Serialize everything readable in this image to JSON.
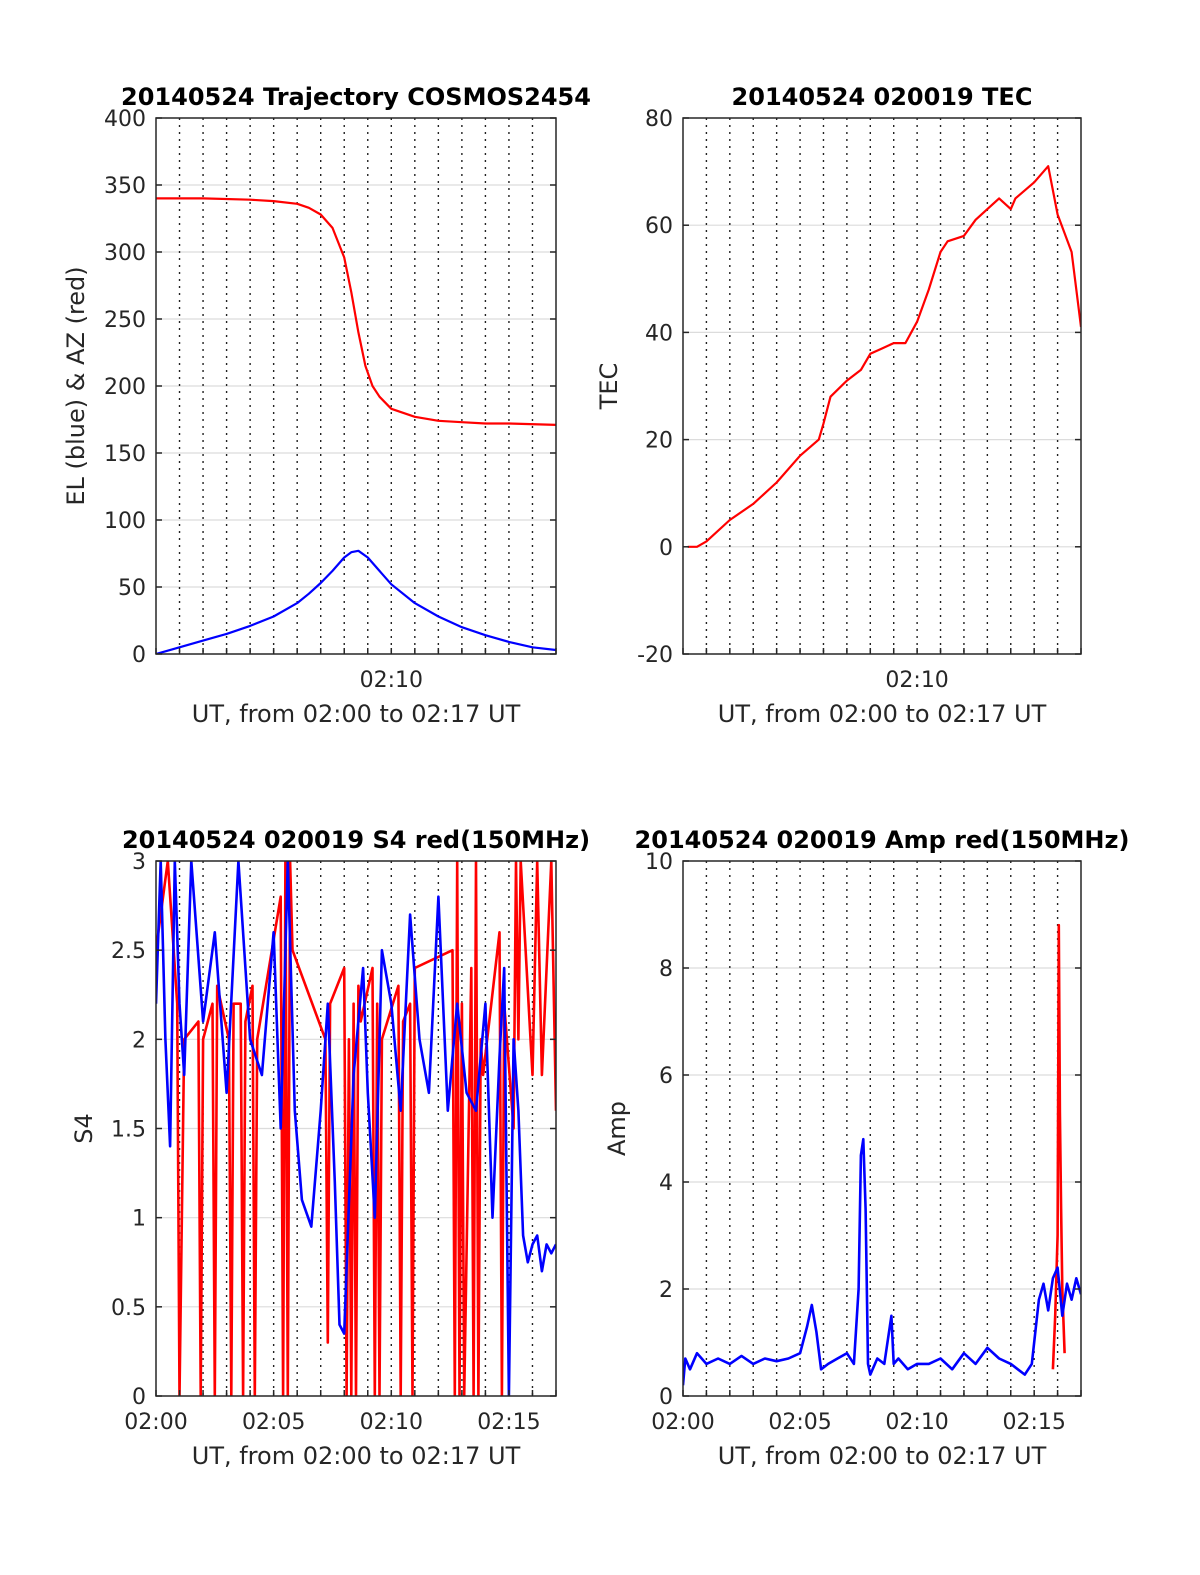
{
  "chart_data": [
    {
      "type": "line",
      "title": "20140524 Trajectory COSMOS2454",
      "xlabel": "UT, from 02:00 to 02:17 UT",
      "ylabel": "EL (blue) & AZ (red)",
      "xlim_minutes": [
        0,
        17
      ],
      "ylim": [
        0,
        400
      ],
      "yticks": [
        0,
        50,
        100,
        150,
        200,
        250,
        300,
        350,
        400
      ],
      "xticks": [
        {
          "minute": 10,
          "label": "02:10"
        }
      ],
      "grid": "y solid, x dotted every minute",
      "series": [
        {
          "color": "#ff0000",
          "x": [
            0,
            2,
            4,
            5,
            6,
            6.5,
            7,
            7.5,
            8,
            8.3,
            8.6,
            8.9,
            9.2,
            9.5,
            10,
            11,
            12,
            13,
            14,
            15,
            17
          ],
          "y": [
            340,
            340,
            339,
            338,
            336,
            333,
            328,
            318,
            296,
            270,
            240,
            215,
            200,
            192,
            183,
            177,
            174,
            173,
            172,
            172,
            171
          ]
        },
        {
          "color": "#0000ff",
          "x": [
            0,
            1,
            2,
            3,
            4,
            5,
            6,
            6.5,
            7,
            7.5,
            8,
            8.3,
            8.6,
            9,
            9.5,
            10,
            11,
            12,
            13,
            14,
            15,
            16,
            17
          ],
          "y": [
            0,
            5,
            10,
            15,
            21,
            28,
            38,
            45,
            53,
            62,
            72,
            76,
            77,
            72,
            62,
            52,
            38,
            28,
            20,
            14,
            9,
            5,
            3
          ]
        }
      ]
    },
    {
      "type": "line",
      "title": "20140524 020019 TEC",
      "xlabel": "UT, from 02:00 to 02:17 UT",
      "ylabel": "TEC",
      "xlim_minutes": [
        0,
        17
      ],
      "ylim": [
        -20,
        80
      ],
      "yticks": [
        -20,
        0,
        20,
        40,
        60,
        80
      ],
      "xticks": [
        {
          "minute": 10,
          "label": "02:10"
        }
      ],
      "grid": "y solid, x dotted every minute",
      "series": [
        {
          "color": "#ff0000",
          "x": [
            0.2,
            0.6,
            1,
            2,
            3,
            4,
            5,
            5.8,
            6,
            6.3,
            7,
            7.6,
            8,
            8.5,
            9,
            9.5,
            10,
            10.5,
            11,
            11.3,
            12,
            12.5,
            13,
            13.5,
            14,
            14.2,
            15,
            15.6,
            16,
            16.6,
            17
          ],
          "y": [
            0,
            0,
            1,
            5,
            8,
            12,
            17,
            20,
            23,
            28,
            31,
            33,
            36,
            37,
            38,
            38,
            42,
            48,
            55,
            57,
            58,
            61,
            63,
            65,
            63,
            65,
            68,
            71,
            62,
            55,
            41
          ]
        }
      ]
    },
    {
      "type": "line",
      "title": "20140524 020019 S4 red(150MHz)",
      "xlabel": "UT, from 02:00 to 02:17 UT",
      "ylabel": "S4",
      "xlim_minutes": [
        0,
        17
      ],
      "ylim": [
        0,
        3
      ],
      "yticks": [
        0,
        0.5,
        1,
        1.5,
        2,
        2.5,
        3
      ],
      "xticks": [
        {
          "minute": 0,
          "label": "02:00"
        },
        {
          "minute": 5,
          "label": "02:05"
        },
        {
          "minute": 10,
          "label": "02:10"
        },
        {
          "minute": 15,
          "label": "02:15"
        }
      ],
      "grid": "y solid, x dotted every minute",
      "series": [
        {
          "color": "#ff0000",
          "x": [
            0,
            0.5,
            0.9,
            1.0,
            1.2,
            1.8,
            1.9,
            2.0,
            2.4,
            2.5,
            2.6,
            3.1,
            3.2,
            3.3,
            3.6,
            3.7,
            3.8,
            4.1,
            4.2,
            4.3,
            5.3,
            5.4,
            5.5,
            5.6,
            5.7,
            5.8,
            7.2,
            7.3,
            7.4,
            8.0,
            8.1,
            8.2,
            8.3,
            8.4,
            8.5,
            8.6,
            8.7,
            9.2,
            9.3,
            9.4,
            9.5,
            9.6,
            10.3,
            10.4,
            10.5,
            10.8,
            10.9,
            11.0,
            12.6,
            12.7,
            12.8,
            12.9,
            13.0,
            13.1,
            13.4,
            13.5,
            13.6,
            13.7,
            13.8,
            13.9,
            14.6,
            14.7,
            14.8,
            15.2,
            15.3,
            15.4,
            15.5,
            16.0,
            16.2,
            16.4,
            16.8,
            17.0
          ],
          "y": [
            2.5,
            3,
            2.2,
            0,
            2.0,
            2.1,
            0,
            2.0,
            2.2,
            0,
            2.3,
            2.0,
            0,
            2.2,
            2.2,
            0,
            2.1,
            2.3,
            0,
            2.0,
            2.8,
            0,
            3,
            0,
            3,
            2.5,
            2.0,
            0.3,
            2.2,
            2.4,
            0,
            2.0,
            0,
            2.2,
            0,
            2.3,
            2.1,
            2.4,
            0,
            2.2,
            0,
            2.0,
            2.3,
            0,
            2.1,
            2.2,
            0,
            2.4,
            2.5,
            0,
            3,
            0,
            2.2,
            0,
            2.4,
            0,
            3,
            0,
            2.0,
            1.8,
            2.6,
            0,
            2.2,
            1.5,
            3,
            2.0,
            3,
            1.8,
            3,
            1.8,
            3,
            1.6
          ]
        },
        {
          "color": "#0000ff",
          "x": [
            0,
            0.2,
            0.4,
            0.6,
            0.8,
            1.0,
            1.2,
            1.5,
            2.0,
            2.5,
            3.0,
            3.5,
            4.0,
            4.5,
            5.0,
            5.3,
            5.6,
            5.9,
            6.2,
            6.6,
            7.0,
            7.3,
            7.6,
            7.8,
            8.0,
            8.4,
            8.8,
            9.0,
            9.3,
            9.6,
            10.0,
            10.4,
            10.8,
            11.2,
            11.6,
            12.0,
            12.4,
            12.8,
            13.2,
            13.6,
            14.0,
            14.3,
            14.6,
            14.8,
            15.0,
            15.2,
            15.4,
            15.6,
            15.8,
            16.0,
            16.2,
            16.4,
            16.6,
            16.8,
            17.0
          ],
          "y": [
            2.2,
            3,
            2.0,
            1.4,
            3,
            2.2,
            1.8,
            3,
            2.1,
            2.6,
            1.7,
            3,
            2.0,
            1.8,
            2.6,
            1.5,
            3,
            1.6,
            1.1,
            0.95,
            1.6,
            2.2,
            1.2,
            0.4,
            0.35,
            1.8,
            2.4,
            1.7,
            1.0,
            2.5,
            2.2,
            1.6,
            2.7,
            2.0,
            1.7,
            2.8,
            1.6,
            2.2,
            1.7,
            1.6,
            2.2,
            1.0,
            1.9,
            2.4,
            0,
            2.0,
            1.6,
            0.9,
            0.75,
            0.85,
            0.9,
            0.7,
            0.85,
            0.8,
            0.85
          ]
        }
      ]
    },
    {
      "type": "line",
      "title": "20140524 020019 Amp red(150MHz)",
      "xlabel": "UT, from 02:00 to 02:17 UT",
      "ylabel": "Amp",
      "xlim_minutes": [
        0,
        17
      ],
      "ylim": [
        0,
        10
      ],
      "yticks": [
        0,
        2,
        4,
        6,
        8,
        10
      ],
      "xticks": [
        {
          "minute": 0,
          "label": "02:00"
        },
        {
          "minute": 5,
          "label": "02:05"
        },
        {
          "minute": 10,
          "label": "02:10"
        },
        {
          "minute": 15,
          "label": "02:15"
        }
      ],
      "grid": "y solid, x dotted every minute",
      "series": [
        {
          "color": "#ff0000",
          "x": [
            15.8,
            15.9,
            16.0,
            16.05,
            16.1,
            16.15,
            16.2,
            16.3
          ],
          "y": [
            0.5,
            1.5,
            3.0,
            8.8,
            5.3,
            3.5,
            2.0,
            0.8
          ]
        },
        {
          "color": "#0000ff",
          "x": [
            0,
            0.1,
            0.3,
            0.6,
            1.0,
            1.5,
            2.0,
            2.5,
            3.0,
            3.5,
            4.0,
            4.5,
            5.0,
            5.3,
            5.5,
            5.7,
            5.9,
            6.2,
            6.6,
            7.0,
            7.3,
            7.5,
            7.6,
            7.7,
            7.8,
            7.9,
            8.0,
            8.3,
            8.6,
            8.9,
            9.0,
            9.2,
            9.6,
            10.0,
            10.5,
            11.0,
            11.5,
            12.0,
            12.5,
            13.0,
            13.5,
            14.0,
            14.3,
            14.6,
            14.9,
            15.2,
            15.4,
            15.6,
            15.8,
            16.0,
            16.2,
            16.4,
            16.6,
            16.8,
            17.0
          ],
          "y": [
            0.2,
            0.7,
            0.5,
            0.8,
            0.6,
            0.7,
            0.6,
            0.75,
            0.6,
            0.7,
            0.65,
            0.7,
            0.8,
            1.3,
            1.7,
            1.2,
            0.5,
            0.6,
            0.7,
            0.8,
            0.6,
            2.0,
            4.5,
            4.8,
            3.5,
            0.6,
            0.4,
            0.7,
            0.6,
            1.5,
            0.6,
            0.7,
            0.5,
            0.6,
            0.6,
            0.7,
            0.5,
            0.8,
            0.6,
            0.9,
            0.7,
            0.6,
            0.5,
            0.4,
            0.6,
            1.8,
            2.1,
            1.6,
            2.2,
            2.4,
            1.5,
            2.1,
            1.8,
            2.2,
            1.9
          ]
        }
      ]
    }
  ]
}
